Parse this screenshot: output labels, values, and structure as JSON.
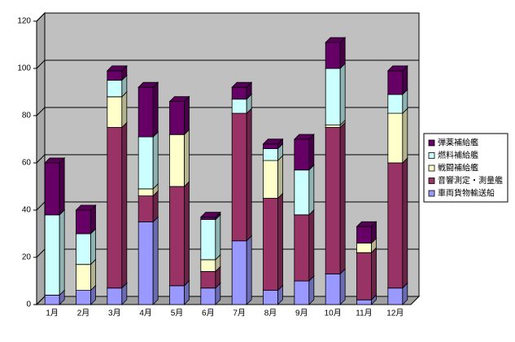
{
  "chart_data": {
    "type": "bar3d_stacked",
    "categories": [
      "1月",
      "2月",
      "3月",
      "4月",
      "5月",
      "6月",
      "7月",
      "8月",
      "9月",
      "10月",
      "11月",
      "12月"
    ],
    "series": [
      {
        "name": "車両貨物輸送船",
        "color": "#9999ff",
        "values": [
          4,
          6,
          7,
          35,
          8,
          7,
          27,
          6,
          10,
          13,
          2,
          7
        ]
      },
      {
        "name": "音響測定・測量艦",
        "color": "#993366",
        "values": [
          0,
          0,
          68,
          11,
          42,
          7,
          54,
          39,
          28,
          62,
          20,
          53
        ]
      },
      {
        "name": "戦闘補給艦",
        "color": "#ffffcc",
        "values": [
          0,
          11,
          13,
          3,
          22,
          5,
          0,
          16,
          0,
          1,
          4,
          21
        ]
      },
      {
        "name": "燃料補給艦",
        "color": "#ccffff",
        "values": [
          34,
          13,
          7,
          22,
          0,
          17,
          6,
          5,
          19,
          24,
          0,
          8
        ]
      },
      {
        "name": "弾薬補給艦",
        "color": "#660066",
        "values": [
          22,
          10,
          4,
          21,
          14,
          1,
          5,
          2,
          13,
          11,
          7,
          10
        ]
      }
    ],
    "ylim": [
      0,
      120
    ],
    "yticks": [
      0,
      20,
      40,
      60,
      80,
      100,
      120
    ],
    "grid": true,
    "legend": "right"
  }
}
